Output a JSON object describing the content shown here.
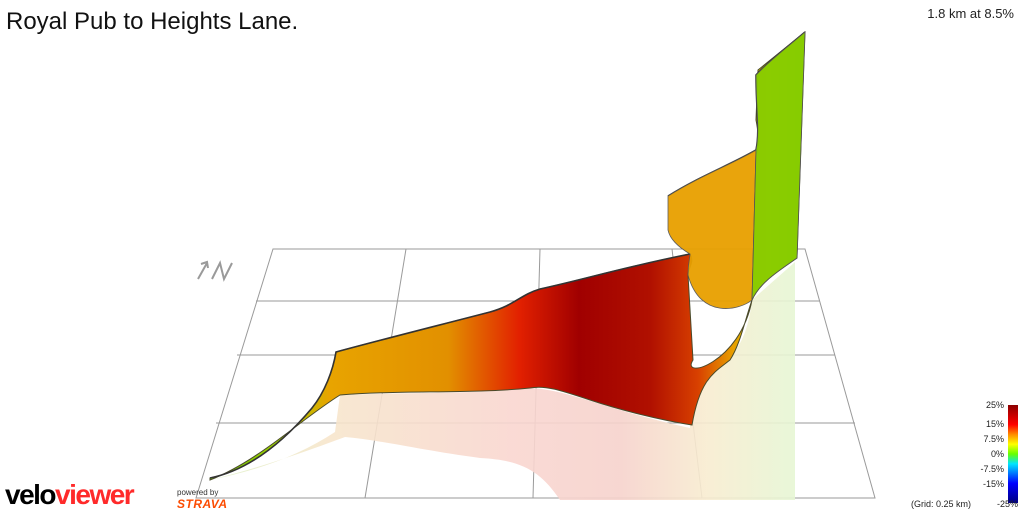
{
  "header": {
    "title": "Royal Pub to Heights Lane.",
    "stat": "1.8 km at 8.5%"
  },
  "legend": {
    "labels": [
      "25%",
      "15%",
      "7.5%",
      "0%",
      "-7.5%",
      "-15%",
      "-25%"
    ],
    "grid_note": "(Grid: 0.25 km)"
  },
  "branding": {
    "logo_part1": "velo",
    "logo_part2": "viewer",
    "powered_by": "powered by",
    "strava": "STRAVA"
  },
  "colors": {
    "steep": "#8b0000",
    "hard": "#e00000",
    "medium": "#e89a00",
    "easy": "#7ccc00",
    "brand_red": "#ff2a2a",
    "strava_orange": "#fc4c02"
  }
}
